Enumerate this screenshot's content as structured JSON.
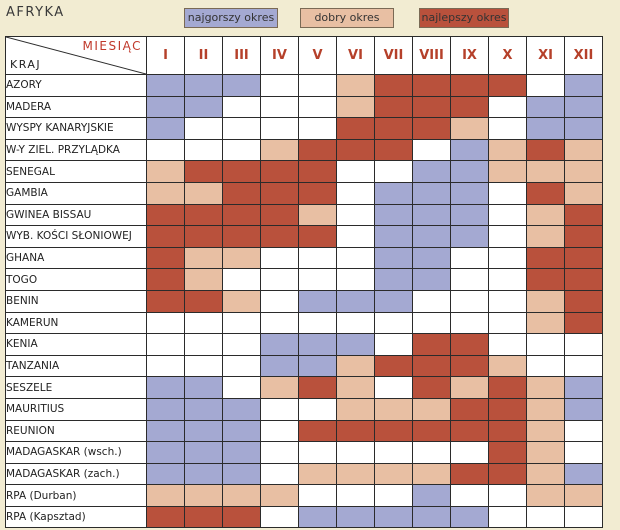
{
  "title": "AFRYKA",
  "legend": [
    {
      "label": "najgorszy okres",
      "color": "#a4a9d2"
    },
    {
      "label": "dobry okres",
      "color": "#e8bfa3"
    },
    {
      "label": "najlepszy okres",
      "color": "#b9513c"
    }
  ],
  "header": {
    "month_label": "MIESIĄC",
    "country_label": "KRAJ"
  },
  "colors": {
    "0": "#ffffff",
    "1": "#a4a9d2",
    "2": "#e8bfa3",
    "3": "#b9513c",
    "accent": "#b5402a",
    "background": "#f2ecd2"
  },
  "chart_data": {
    "type": "heatmap",
    "title": "AFRYKA",
    "value_legend": {
      "0": "",
      "1": "najgorszy okres",
      "2": "dobry okres",
      "3": "najlepszy okres"
    },
    "x": [
      "I",
      "II",
      "III",
      "IV",
      "V",
      "VI",
      "VII",
      "VIII",
      "IX",
      "X",
      "XI",
      "XII"
    ],
    "y": [
      "AZORY",
      "MADERA",
      "WYSPY KANARYJSKIE",
      "W-Y ZIEL. PRZYLĄDKA",
      "SENEGAL",
      "GAMBIA",
      "GWINEA BISSAU",
      "WYB. KOŚCI SŁONIOWEJ",
      "GHANA",
      "TOGO",
      "BENIN",
      "KAMERUN",
      "KENIA",
      "TANZANIA",
      "SESZELE",
      "MAURITIUS",
      "REUNION",
      "MADAGASKAR (wsch.)",
      "MADAGASKAR (zach.)",
      "RPA (Durban)",
      "RPA (Kapsztad)"
    ],
    "values": [
      [
        1,
        1,
        1,
        0,
        0,
        2,
        3,
        3,
        3,
        3,
        0,
        1
      ],
      [
        1,
        1,
        0,
        0,
        0,
        2,
        3,
        3,
        3,
        0,
        1,
        1
      ],
      [
        1,
        0,
        0,
        0,
        0,
        3,
        3,
        3,
        2,
        0,
        1,
        1
      ],
      [
        0,
        0,
        0,
        2,
        3,
        3,
        3,
        0,
        1,
        2,
        3,
        2
      ],
      [
        2,
        3,
        3,
        3,
        3,
        0,
        0,
        1,
        1,
        2,
        2,
        2
      ],
      [
        2,
        2,
        3,
        3,
        3,
        0,
        1,
        1,
        1,
        0,
        3,
        2
      ],
      [
        3,
        3,
        3,
        3,
        2,
        0,
        1,
        1,
        1,
        0,
        2,
        3
      ],
      [
        3,
        3,
        3,
        3,
        3,
        0,
        1,
        1,
        1,
        0,
        2,
        3
      ],
      [
        3,
        2,
        2,
        0,
        0,
        0,
        1,
        1,
        0,
        0,
        3,
        3
      ],
      [
        3,
        2,
        0,
        0,
        0,
        0,
        1,
        1,
        0,
        0,
        3,
        3
      ],
      [
        3,
        3,
        2,
        0,
        1,
        1,
        1,
        0,
        0,
        0,
        2,
        3
      ],
      [
        0,
        0,
        0,
        0,
        0,
        0,
        0,
        0,
        0,
        0,
        2,
        3
      ],
      [
        0,
        0,
        0,
        1,
        1,
        1,
        0,
        3,
        3,
        0,
        0,
        0
      ],
      [
        0,
        0,
        0,
        1,
        1,
        2,
        3,
        3,
        3,
        2,
        0,
        0
      ],
      [
        1,
        1,
        0,
        2,
        3,
        2,
        0,
        3,
        2,
        3,
        2,
        1
      ],
      [
        1,
        1,
        1,
        0,
        0,
        2,
        2,
        2,
        3,
        3,
        2,
        1
      ],
      [
        1,
        1,
        1,
        0,
        3,
        3,
        3,
        3,
        3,
        3,
        2,
        0
      ],
      [
        1,
        1,
        1,
        0,
        0,
        0,
        0,
        0,
        0,
        3,
        2,
        0
      ],
      [
        1,
        1,
        1,
        0,
        2,
        2,
        2,
        2,
        3,
        3,
        2,
        1
      ],
      [
        2,
        2,
        2,
        2,
        0,
        0,
        0,
        1,
        0,
        0,
        2,
        2
      ],
      [
        3,
        3,
        3,
        0,
        1,
        1,
        1,
        1,
        1,
        0,
        0,
        0
      ]
    ]
  }
}
